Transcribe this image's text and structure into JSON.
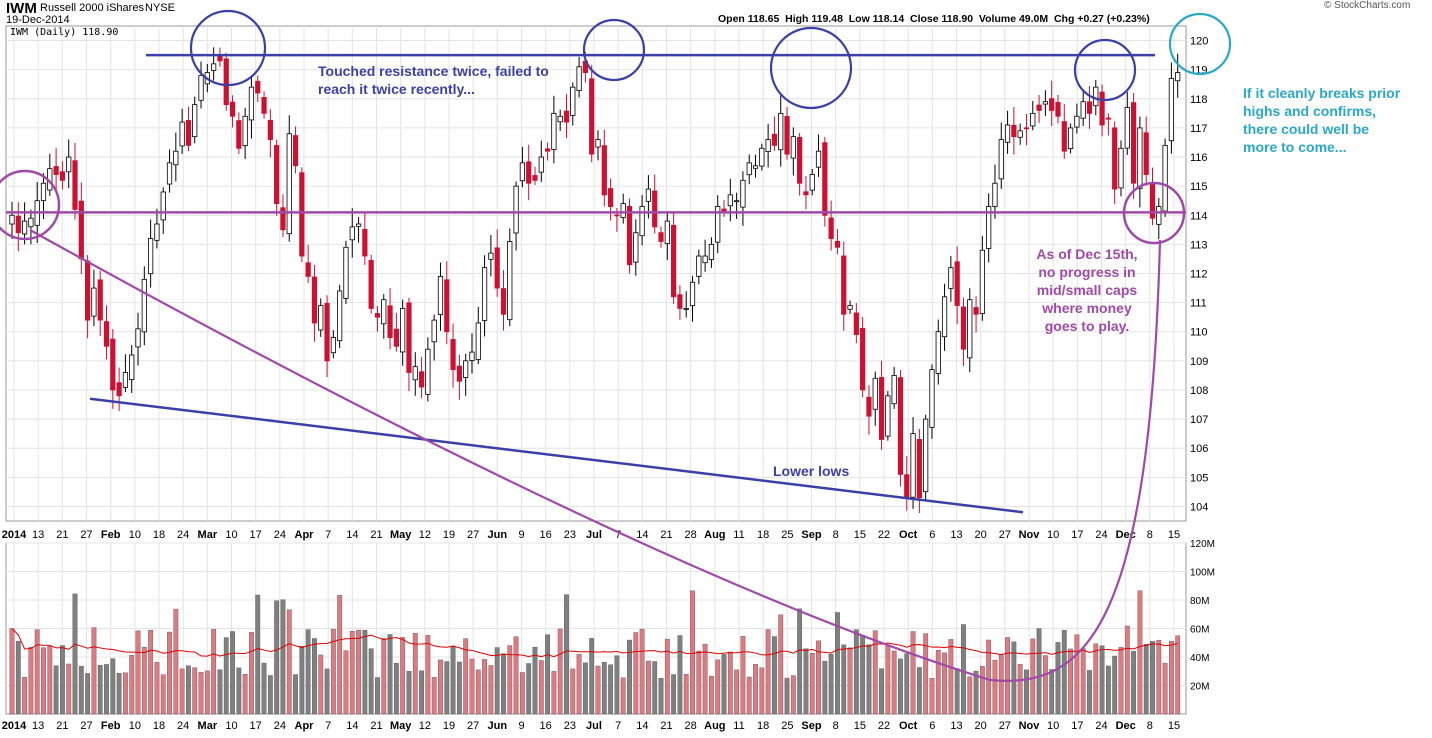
{
  "header": {
    "symbol": "IWM",
    "name": "Russell 2000 iShares",
    "exchange": "NYSE",
    "date": "19-Dec-2014",
    "legend": "IWM (Daily) 118.90",
    "quote": "Open 118.65  High 119.48  Low 118.14  Close 118.90  Volume 49.0M  Chg +0.27 (+0.23%)",
    "source": "© StockCharts.com"
  },
  "annotations": {
    "resistance": "Touched resistance twice, failed to reach it twice recently...",
    "lower_lows": "Lower lows",
    "breakout": "If it cleanly breaks prior highs and confirms,  there could well be more to come...",
    "dec15": "As of Dec 15th, no progress in mid/small caps where money goes to play."
  },
  "colors": {
    "up": "#ffffff",
    "down": "#cc1133",
    "vol_up": "#e07a82",
    "vol_down": "#808080",
    "resistance": "#3b3fa8",
    "support": "#a04aa8",
    "breakout_text": "#2aa8c8",
    "grid": "#e4e4e4",
    "ma": "#dd0000"
  },
  "chart_data": [
    {
      "type": "candlestick",
      "series": "IWM (Daily)",
      "ylim": [
        103.5,
        120.5
      ],
      "y_ticks": [
        104,
        105,
        106,
        107,
        108,
        109,
        110,
        111,
        112,
        113,
        114,
        115,
        116,
        117,
        118,
        119,
        120
      ],
      "x_tick_labels": [
        "2014",
        "13",
        "21",
        "27",
        "Feb",
        "10",
        "18",
        "24",
        "Mar",
        "10",
        "17",
        "24",
        "Apr",
        "7",
        "14",
        "21",
        "May",
        "12",
        "19",
        "27",
        "Jun",
        "9",
        "16",
        "23",
        "Jul",
        "7",
        "14",
        "21",
        "28",
        "Aug",
        "11",
        "18",
        "25",
        "Sep",
        "8",
        "15",
        "22",
        "Oct",
        "6",
        "13",
        "20",
        "27",
        "Nov",
        "10",
        "17",
        "24",
        "Dec",
        "8",
        "15"
      ],
      "closes": [
        114.0,
        113.4,
        113.8,
        113.9,
        114.5,
        115.1,
        115.6,
        115.4,
        115.2,
        116.0,
        114.2,
        112.5,
        110.4,
        111.5,
        110.4,
        109.5,
        108.0,
        107.8,
        108.6,
        109.2,
        110.1,
        111.8,
        113.2,
        113.7,
        114.8,
        115.8,
        116.2,
        117.2,
        116.4,
        117.8,
        118.8,
        118.9,
        119.2,
        119.3,
        117.8,
        117.4,
        116.3,
        117.4,
        118.4,
        118.2,
        117.5,
        116.6,
        114.4,
        113.5,
        116.8,
        115.7,
        112.6,
        111.9,
        110.3,
        110.9,
        109.0,
        109.8,
        111.4,
        112.9,
        113.6,
        113.7,
        112.6,
        110.8,
        110.5,
        111.1,
        109.8,
        109.5,
        110.8,
        108.6,
        108.8,
        108.1,
        109.4,
        110.4,
        111.9,
        110.0,
        108.7,
        108.3,
        109.0,
        109.3,
        110.3,
        112.2,
        112.7,
        111.5,
        110.6,
        113.1,
        115.0,
        115.8,
        115.1,
        115.2,
        116.0,
        116.2,
        117.5,
        117.4,
        117.2,
        118.4,
        119.1,
        118.9,
        116.1,
        116.6,
        114.7,
        114.3,
        114.0,
        114.4,
        112.3,
        113.4,
        114.3,
        114.9,
        113.6,
        113.1,
        113.8,
        111.2,
        110.8,
        110.8,
        111.7,
        112.6,
        112.6,
        113.0,
        114.3,
        114.1,
        114.7,
        114.5,
        115.2,
        115.8,
        115.7,
        116.3,
        116.6,
        116.4,
        117.5,
        116.1,
        116.7,
        115.1,
        114.7,
        115.4,
        116.2,
        114.0,
        113.2,
        112.9,
        110.6,
        110.9,
        109.9,
        108.0,
        107.1,
        108.4,
        106.3,
        107.8,
        108.5,
        105.1,
        104.3,
        106.5,
        104.3,
        107.0,
        108.7,
        110.0,
        111.2,
        112.2,
        110.9,
        109.4,
        111.1,
        110.6,
        112.8,
        114.3,
        115.1,
        116.6,
        117.1,
        116.7,
        116.9,
        117.0,
        117.5,
        117.6,
        117.9,
        117.6,
        117.4,
        116.2,
        117.0,
        117.4,
        117.9,
        117.5,
        118.4,
        117.1,
        117.3,
        114.9,
        116.3,
        117.7,
        115.1,
        117.0,
        115.4,
        113.9,
        114.3,
        116.4,
        118.7,
        118.9
      ],
      "annotation_lines": [
        "resistance ~119.5",
        "support ~114.1",
        "lower lows trendline ~107.8 to ~103.8"
      ]
    },
    {
      "type": "bar",
      "series": "Volume",
      "ylim": [
        0,
        120
      ],
      "y_ticks": [
        "20M",
        "40M",
        "60M",
        "80M",
        "100M",
        "120M"
      ],
      "moving_average": true
    }
  ]
}
